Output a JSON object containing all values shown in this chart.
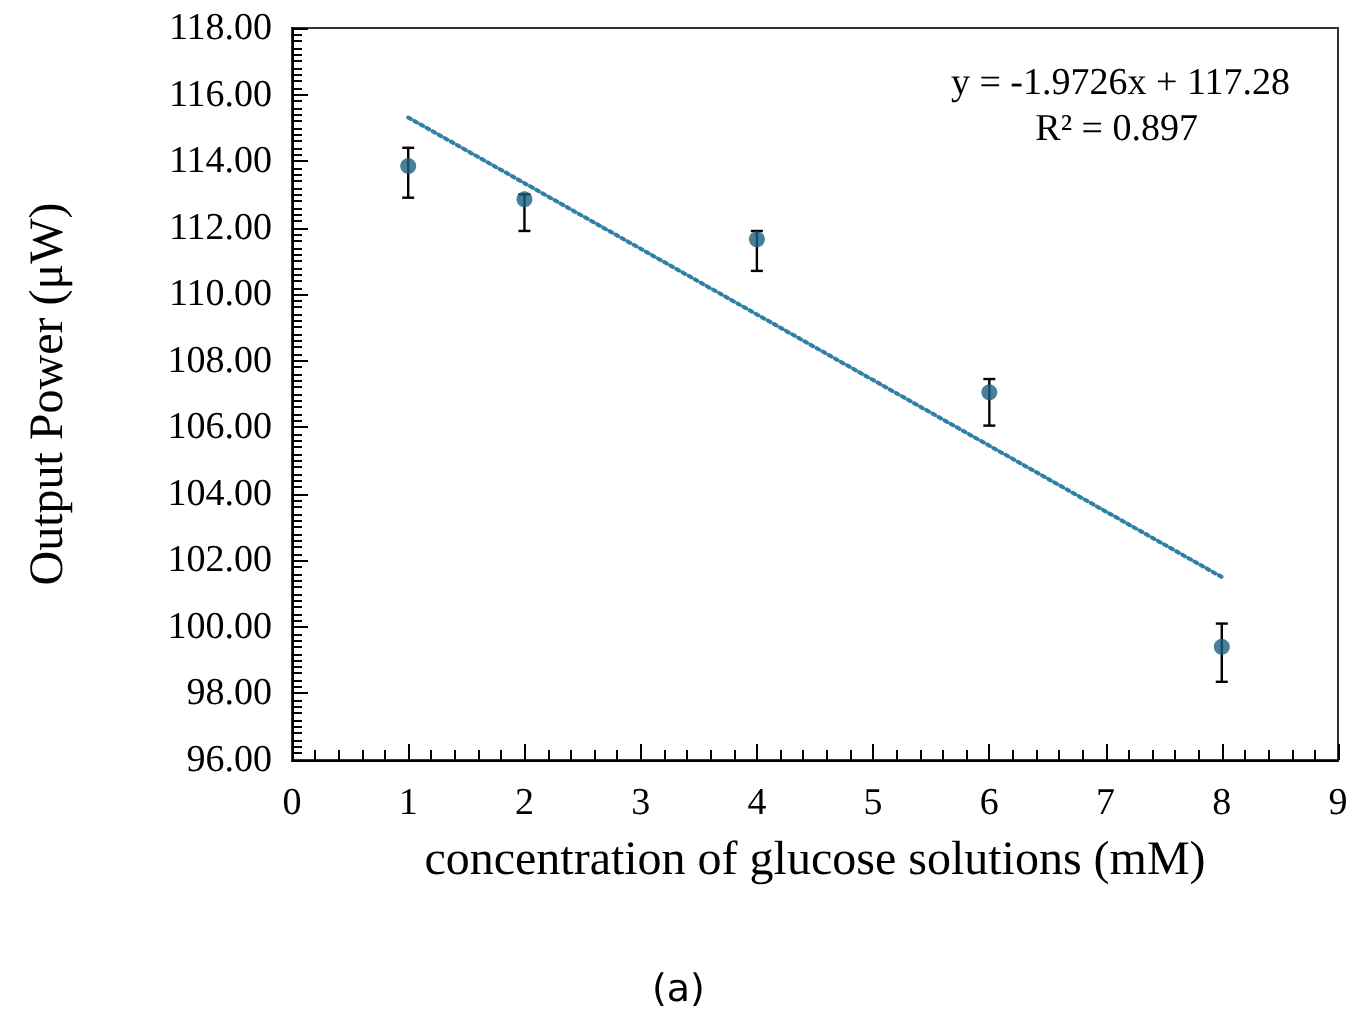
{
  "chart_data": {
    "type": "scatter",
    "xlabel": "concentration of glucose solutions (mM)",
    "ylabel": "Output Power (μW)",
    "x": [
      1,
      2,
      4,
      6,
      8
    ],
    "series": [
      {
        "color": "#1a5f82",
        "values": [
          113.85,
          112.85,
          111.65,
          107.05,
          99.4
        ],
        "errors": [
          [
            112.9,
            114.4
          ],
          [
            111.9,
            113.0
          ],
          [
            110.7,
            111.9
          ],
          [
            106.05,
            107.45
          ],
          [
            98.35,
            100.1
          ]
        ],
        "marker": "circle"
      },
      {
        "type": "line",
        "x": [
          1,
          8
        ],
        "color": "#2f7fa6",
        "values": [
          115.31,
          101.5
        ],
        "line_style": "dotted",
        "marker": "none"
      }
    ],
    "xlim": [
      0,
      9
    ],
    "xticks": [
      0,
      1,
      2,
      3,
      4,
      5,
      6,
      7,
      8,
      9
    ],
    "ylim": [
      96,
      118
    ],
    "yticks": [
      {
        "value": 96,
        "label": "96.00"
      },
      {
        "value": 98,
        "label": "98.00"
      },
      {
        "value": 100,
        "label": "100.00"
      },
      {
        "value": 102,
        "label": "102.00"
      },
      {
        "value": 104,
        "label": "104.00"
      },
      {
        "value": 106,
        "label": "106.00"
      },
      {
        "value": 108,
        "label": "108.00"
      },
      {
        "value": 110,
        "label": "110.00"
      },
      {
        "value": 112,
        "label": "112.00"
      },
      {
        "value": 114,
        "label": "114.00"
      },
      {
        "value": 116,
        "label": "116.00"
      },
      {
        "value": 118,
        "label": "118.00"
      }
    ],
    "annotations": [
      "y = -1.9726x + 117.28",
      "R² = 0.897",
      "(a)"
    ],
    "grid": false
  }
}
